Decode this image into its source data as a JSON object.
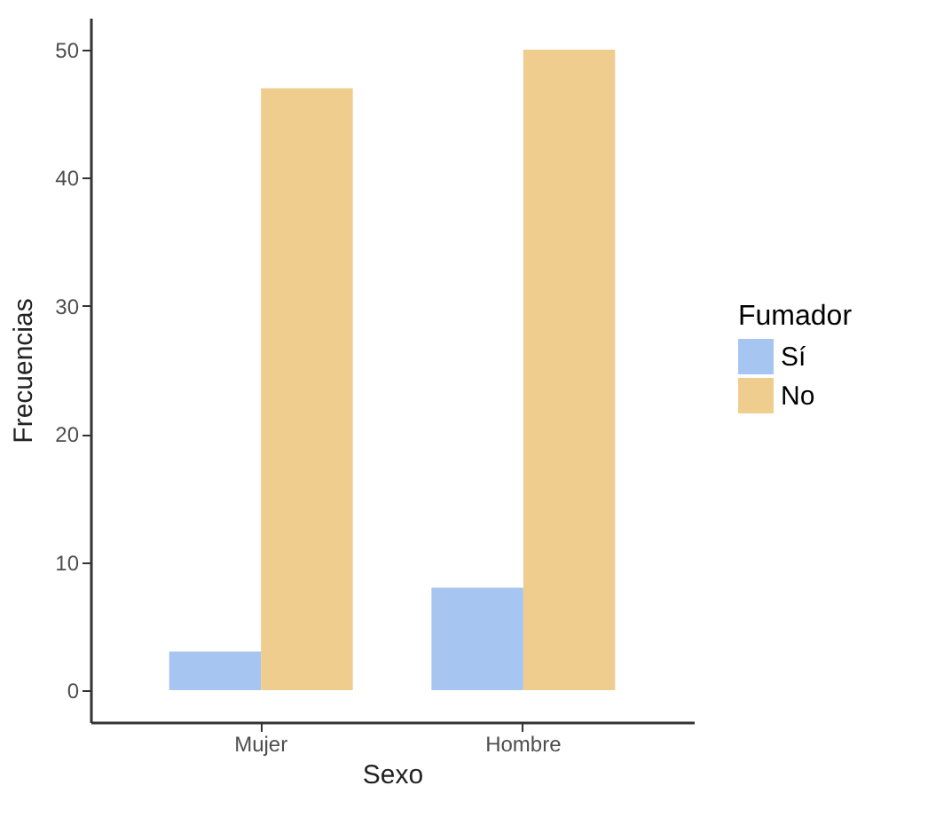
{
  "chart_data": {
    "type": "bar",
    "xlabel": "Sexo",
    "ylabel": "Frecuencias",
    "legend_title": "Fumador",
    "categories": [
      "Mujer",
      "Hombre"
    ],
    "series": [
      {
        "name": "Sí",
        "color": "#a6c5f0",
        "values": [
          3,
          8
        ]
      },
      {
        "name": "No",
        "color": "#efcd8e",
        "values": [
          47,
          50
        ]
      }
    ],
    "ylim": [
      -2.5,
      52.5
    ],
    "yticks": [
      0,
      10,
      20,
      30,
      40,
      50
    ],
    "grid": false,
    "legend": "right"
  }
}
